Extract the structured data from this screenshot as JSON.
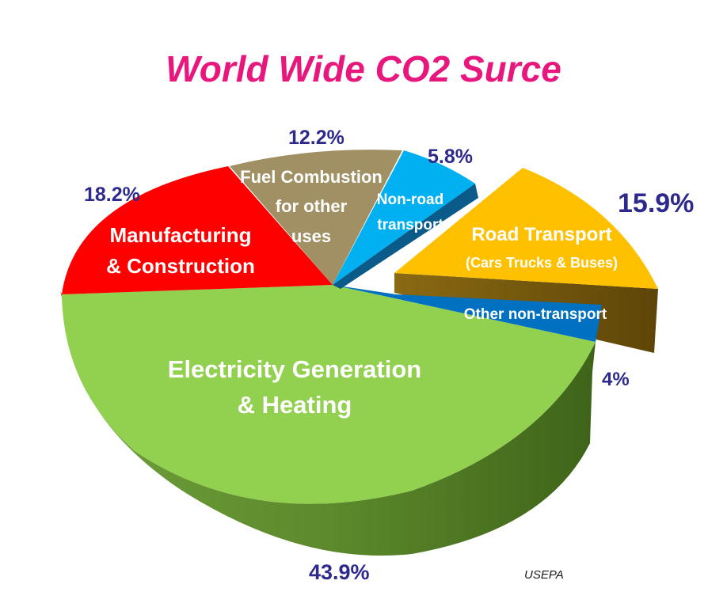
{
  "chart_data": {
    "type": "pie",
    "title": "World Wide CO2 Surce",
    "source": "USEPA",
    "slices": [
      {
        "name": "Electricity Generation & Heating",
        "value": 43.9,
        "percent_label": "43.9%",
        "color": "#92d050"
      },
      {
        "name": "Other non-transport",
        "value": 4,
        "percent_label": "4%",
        "color": "#0070c0"
      },
      {
        "name": "Road Transport (Cars Trucks & Buses)",
        "value": 15.9,
        "percent_label": "15.9%",
        "color": "#ffc000",
        "exploded": true
      },
      {
        "name": "Non-road transport",
        "value": 5.8,
        "percent_label": "5.8%",
        "color": "#00b0f0"
      },
      {
        "name": "Fuel Combustion for other uses",
        "value": 12.2,
        "percent_label": "12.2%",
        "color": "#a09064"
      },
      {
        "name": "Manufacturing & Construction",
        "value": 18.2,
        "percent_label": "18.2%",
        "color": "#ff0000"
      }
    ],
    "label_lines": {
      "electricity": [
        "Electricity Generation",
        "& Heating"
      ],
      "other_non_transport": [
        "Other non-transport"
      ],
      "road": [
        "Road Transport",
        "(Cars Trucks & Buses)"
      ],
      "nonroad": [
        "Non-road",
        "transport"
      ],
      "fuel": [
        "Fuel Combustion",
        "for other",
        "uses"
      ],
      "manufacturing": [
        "Manufacturing",
        "& Construction"
      ]
    },
    "style": "3d-perspective",
    "legend": "none"
  }
}
